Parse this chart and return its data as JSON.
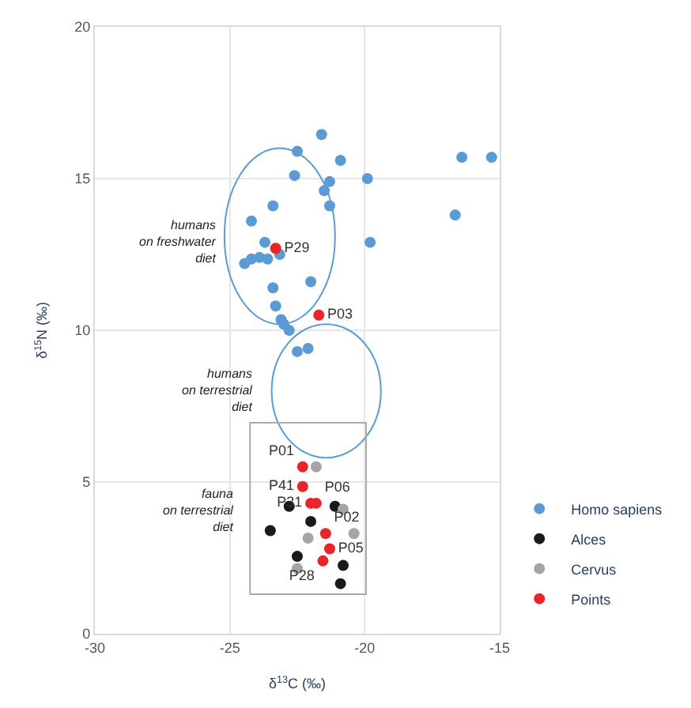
{
  "chart_data": {
    "type": "scatter",
    "xlabel": "δ$^{13}$C (‰)",
    "ylabel": "δ$^{15}$N (‰)",
    "xlim": [
      -30,
      -15
    ],
    "xticks": [
      -30,
      -25,
      -20,
      -15
    ],
    "ylim": [
      0,
      20
    ],
    "yticks": [
      0,
      5,
      10,
      15,
      20
    ],
    "grid": true,
    "legend": "bottom right",
    "marker": "circle",
    "series": [
      {
        "name": "Homo sapiens",
        "color": "#5b9bd5",
        "x": [
          -21.6,
          -22.5,
          -20.9,
          -22.6,
          -21.3,
          -19.9,
          -21.5,
          -16.4,
          -15.3,
          -23.4,
          -21.3,
          -16.65,
          -24.2,
          -19.8,
          -23.7,
          -23.15,
          -24.45,
          -24.2,
          -23.9,
          -23.6,
          -22.0,
          -23.4,
          -23.3,
          -23.1,
          -23.0,
          -22.8,
          -22.5,
          -22.1
        ],
        "values": [
          16.45,
          15.9,
          15.6,
          15.1,
          14.9,
          15.0,
          14.6,
          15.7,
          15.7,
          14.1,
          14.1,
          13.8,
          13.6,
          12.9,
          12.9,
          12.5,
          12.2,
          12.35,
          12.4,
          12.35,
          11.6,
          11.4,
          10.8,
          10.35,
          10.2,
          10.0,
          9.3,
          9.4
        ]
      },
      {
        "name": "Alces",
        "color": "#1a1a1a",
        "x": [
          -22.8,
          -23.5,
          -22.0,
          -21.1,
          -22.5,
          -20.8,
          -20.9
        ],
        "values": [
          4.2,
          3.4,
          3.7,
          4.2,
          2.55,
          2.25,
          1.65
        ]
      },
      {
        "name": "Cervus",
        "color": "#a5a5a5",
        "x": [
          -21.8,
          -22.1,
          -20.8,
          -20.4,
          -22.5
        ],
        "values": [
          5.5,
          3.15,
          4.1,
          3.3,
          2.15
        ]
      },
      {
        "name": "Points",
        "color": "#e8262a",
        "x": [
          -23.3,
          -21.7,
          -22.3,
          -22.3,
          -22.0,
          -21.8,
          -21.45,
          -21.3,
          -21.55
        ],
        "values": [
          12.7,
          10.5,
          5.5,
          4.85,
          4.3,
          4.3,
          3.3,
          2.8,
          2.4
        ],
        "value_labels": [
          "P29",
          "P03",
          "P01",
          "P41",
          "P31",
          "P06",
          "P02",
          "P05",
          "P28"
        ]
      }
    ],
    "annotations": [
      "humans\non freshwater\ndiet",
      "humans\non terrestrial\ndiet",
      "fauna\non terrestrial\ndiet"
    ]
  }
}
